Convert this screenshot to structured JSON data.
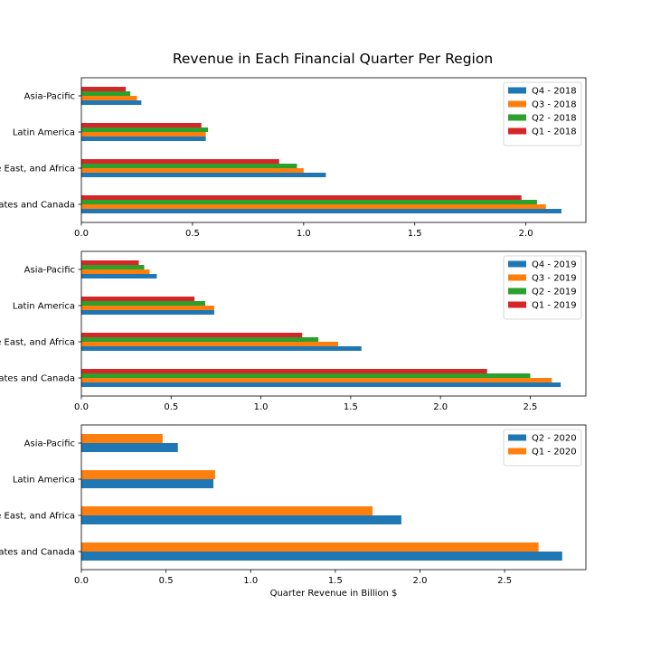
{
  "figure": {
    "title": "Revenue in Each Financial Quarter Per Region",
    "xlabel": "Quarter Revenue in Billion $"
  },
  "chart_data": [
    {
      "type": "bar",
      "orientation": "horizontal",
      "categories": [
        "United States and Canada",
        "Europe, Middle East, and Africa",
        "Latin America",
        "Asia-Pacific"
      ],
      "series": [
        {
          "name": "Q4 - 2018",
          "values": [
            2.16,
            1.1,
            0.56,
            0.27
          ],
          "color": "#1f77b4"
        },
        {
          "name": "Q3 - 2018",
          "values": [
            2.09,
            1.0,
            0.56,
            0.25
          ],
          "color": "#ff7f0e"
        },
        {
          "name": "Q2 - 2018",
          "values": [
            2.05,
            0.97,
            0.57,
            0.22
          ],
          "color": "#2ca02c"
        },
        {
          "name": "Q1 - 2018",
          "values": [
            1.98,
            0.89,
            0.54,
            0.2
          ],
          "color": "#d62728"
        }
      ],
      "xticks": [
        "0.0",
        "0.5",
        "1.0",
        "1.5",
        "2.0"
      ],
      "xlim": [
        0,
        2.27
      ],
      "legend": "top-right",
      "grid": false
    },
    {
      "type": "bar",
      "orientation": "horizontal",
      "categories": [
        "United States and Canada",
        "Europe, Middle East, and Africa",
        "Latin America",
        "Asia-Pacific"
      ],
      "series": [
        {
          "name": "Q4 - 2019",
          "values": [
            2.67,
            1.56,
            0.74,
            0.42
          ],
          "color": "#1f77b4"
        },
        {
          "name": "Q3 - 2019",
          "values": [
            2.62,
            1.43,
            0.74,
            0.38
          ],
          "color": "#ff7f0e"
        },
        {
          "name": "Q2 - 2019",
          "values": [
            2.5,
            1.32,
            0.69,
            0.35
          ],
          "color": "#2ca02c"
        },
        {
          "name": "Q1 - 2019",
          "values": [
            2.26,
            1.23,
            0.63,
            0.32
          ],
          "color": "#d62728"
        }
      ],
      "xticks": [
        "0.0",
        "0.5",
        "1.0",
        "1.5",
        "2.0",
        "2.5"
      ],
      "xlim": [
        0,
        2.81
      ],
      "legend": "top-right",
      "grid": false
    },
    {
      "type": "bar",
      "orientation": "horizontal",
      "categories": [
        "United States and Canada",
        "Europe, Middle East, and Africa",
        "Latin America",
        "Asia-Pacific"
      ],
      "series": [
        {
          "name": "Q2 - 2020",
          "values": [
            2.84,
            1.89,
            0.78,
            0.57
          ],
          "color": "#1f77b4"
        },
        {
          "name": "Q1 - 2020",
          "values": [
            2.7,
            1.72,
            0.79,
            0.48
          ],
          "color": "#ff7f0e"
        }
      ],
      "xticks": [
        "0.0",
        "0.5",
        "1.0",
        "1.5",
        "2.0",
        "2.5"
      ],
      "xlim": [
        0,
        2.98
      ],
      "legend": "top-right",
      "grid": false
    }
  ]
}
